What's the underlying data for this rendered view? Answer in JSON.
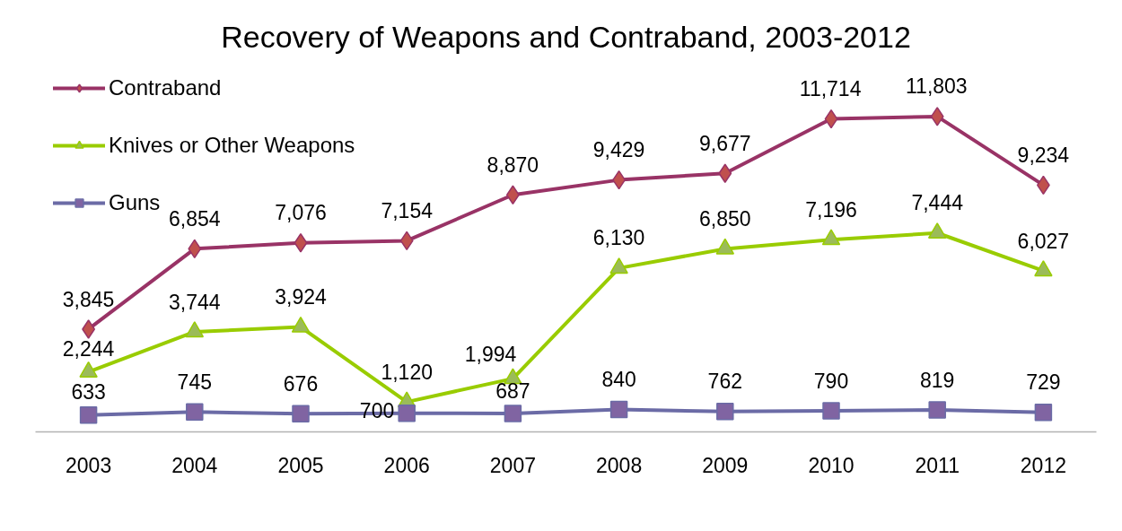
{
  "chart_data": {
    "type": "line",
    "title": "Recovery of Weapons and Contraband, 2003-2012",
    "categories": [
      "2003",
      "2004",
      "2005",
      "2006",
      "2007",
      "2008",
      "2009",
      "2010",
      "2011",
      "2012"
    ],
    "series": [
      {
        "name": "Contraband",
        "color": "#993366",
        "colors": [
          "#c0504d",
          "#c0504d",
          "#c0504d",
          "#c0504d",
          "#c0504d",
          "#c0504d",
          "#c0504d",
          "#c0504d",
          "#c0504d",
          "#c0504d"
        ],
        "marker": "diamond",
        "values": [
          3845,
          6854,
          7076,
          7154,
          8870,
          9429,
          9677,
          11714,
          11803,
          9234
        ],
        "value_labels": [
          "3,845",
          "6,854",
          "7,076",
          "7,154",
          "8,870",
          "9,429",
          "9,677",
          "11,714",
          "11,803",
          "9,234"
        ]
      },
      {
        "name": "Knives or Other Weapons",
        "color": "#99cc00",
        "colors": [
          "#9bbb59",
          "#9bbb59",
          "#9bbb59",
          "#9bbb59",
          "#9bbb59",
          "#9bbb59",
          "#9bbb59",
          "#9bbb59",
          "#9bbb59",
          "#9bbb59"
        ],
        "marker": "triangle",
        "values": [
          2244,
          3744,
          3924,
          1120,
          1994,
          6130,
          6850,
          7196,
          7444,
          6027
        ],
        "value_labels": [
          "2,244",
          "3,744",
          "3,924",
          "1,120",
          "1,994",
          "6,130",
          "6,850",
          "7,196",
          "7,444",
          "6,027"
        ]
      },
      {
        "name": "Guns",
        "color": "#6b6ba6",
        "colors": [
          "#8064a2",
          "#8064a2",
          "#8064a2",
          "#8064a2",
          "#8064a2",
          "#8064a2",
          "#8064a2",
          "#8064a2",
          "#8064a2",
          "#8064a2"
        ],
        "marker": "square",
        "values": [
          633,
          745,
          676,
          700,
          687,
          840,
          762,
          790,
          819,
          729
        ],
        "value_labels": [
          "633",
          "745",
          "676",
          "700",
          "687",
          "840",
          "762",
          "790",
          "819",
          "729"
        ]
      }
    ],
    "tick_labels": "x",
    "legend": "top left"
  }
}
